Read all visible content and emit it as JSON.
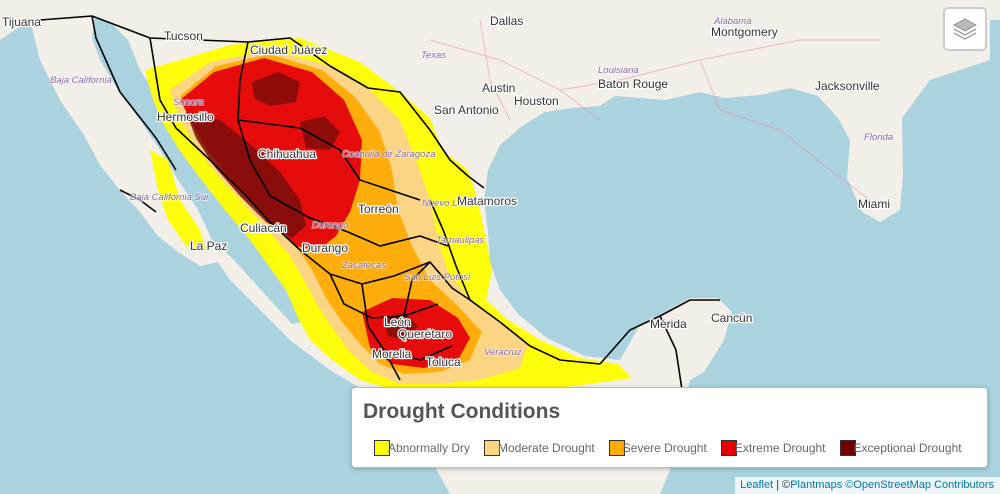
{
  "map": {
    "places": [
      {
        "name": "Tijuana",
        "kind": "city"
      },
      {
        "name": "Tucson",
        "kind": "city"
      },
      {
        "name": "Ciudad Juárez",
        "kind": "city"
      },
      {
        "name": "Dallas",
        "kind": "city"
      },
      {
        "name": "Alabama",
        "kind": "state"
      },
      {
        "name": "Montgomery",
        "kind": "city"
      },
      {
        "name": "Texas",
        "kind": "state"
      },
      {
        "name": "Louisiana",
        "kind": "state"
      },
      {
        "name": "Baton Rouge",
        "kind": "city"
      },
      {
        "name": "Austin",
        "kind": "city"
      },
      {
        "name": "Houston",
        "kind": "city"
      },
      {
        "name": "San Antonio",
        "kind": "city"
      },
      {
        "name": "Jacksonville",
        "kind": "city"
      },
      {
        "name": "Florida",
        "kind": "state"
      },
      {
        "name": "Miami",
        "kind": "city"
      },
      {
        "name": "Baja California",
        "kind": "state"
      },
      {
        "name": "Sonora",
        "kind": "state"
      },
      {
        "name": "Hermosillo",
        "kind": "city"
      },
      {
        "name": "Chihuahua",
        "kind": "city"
      },
      {
        "name": "Coahuila de Zaragoza",
        "kind": "state"
      },
      {
        "name": "Nuevo León",
        "kind": "state"
      },
      {
        "name": "Matamoros",
        "kind": "city"
      },
      {
        "name": "Baja California Sur",
        "kind": "state"
      },
      {
        "name": "Culiacán",
        "kind": "city"
      },
      {
        "name": "Torreón",
        "kind": "city"
      },
      {
        "name": "Durango",
        "kind": "state"
      },
      {
        "name": "Durango",
        "kind": "city"
      },
      {
        "name": "Tamaulipas",
        "kind": "state"
      },
      {
        "name": "La Paz",
        "kind": "city"
      },
      {
        "name": "Zacatecas",
        "kind": "state"
      },
      {
        "name": "San Luis Potosí",
        "kind": "state"
      },
      {
        "name": "León",
        "kind": "city"
      },
      {
        "name": "Querétaro",
        "kind": "city"
      },
      {
        "name": "Morelia",
        "kind": "city"
      },
      {
        "name": "Toluca",
        "kind": "city"
      },
      {
        "name": "Veracruz",
        "kind": "state"
      },
      {
        "name": "Mérida",
        "kind": "city"
      },
      {
        "name": "Cancún",
        "kind": "city"
      }
    ]
  },
  "layers_control": {
    "icon": "layers-icon"
  },
  "legend": {
    "title": "Drought Conditions",
    "items": [
      {
        "label": "Abnormally Dry",
        "color": "#ffff00"
      },
      {
        "label": "Moderate Drought",
        "color": "#fcd37f"
      },
      {
        "label": "Severe Drought",
        "color": "#ffaa00"
      },
      {
        "label": "Extreme Drought",
        "color": "#e60000"
      },
      {
        "label": "Exceptional Drought",
        "color": "#730000"
      }
    ]
  },
  "attribution": {
    "leaflet": "Leaflet",
    "separator": " | ©",
    "plantmaps": "Plantmaps",
    "osm": "©OpenStreetMap Contributors"
  },
  "colors": {
    "water": "#aad3df",
    "land": "#f2efe9",
    "border": "#000000"
  }
}
